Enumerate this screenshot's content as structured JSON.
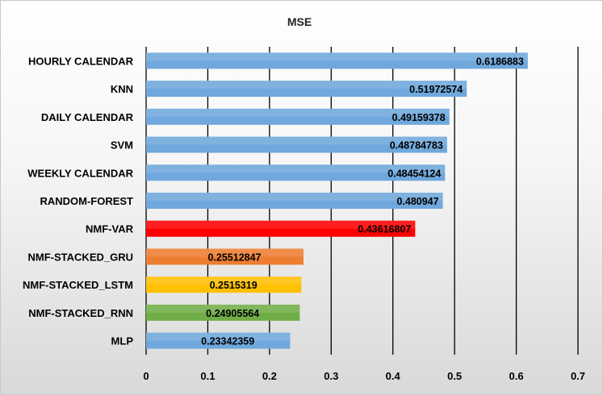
{
  "chart_data": {
    "type": "bar",
    "orientation": "horizontal",
    "title": "MSE",
    "xlim": [
      0,
      0.7
    ],
    "xticks": [
      "0",
      "0.1",
      "0.2",
      "0.3",
      "0.4",
      "0.5",
      "0.6",
      "0.7"
    ],
    "grid": true,
    "categories": [
      "HOURLY CALENDAR",
      "KNN",
      "DAILY CALENDAR",
      "SVM",
      "WEEKLY CALENDAR",
      "RANDOM-FOREST",
      "NMF-VAR",
      "NMF-STACKED_GRU",
      "NMF-STACKED_LSTM",
      "NMF-STACKED_RNN",
      "MLP"
    ],
    "values": [
      0.6186883,
      0.51972574,
      0.49159378,
      0.48784783,
      0.48454124,
      0.480947,
      0.43616807,
      0.25512847,
      0.2515319,
      0.24905564,
      0.23342359
    ],
    "value_labels": [
      "0.6186883",
      "0.51972574",
      "0.49159378",
      "0.48784783",
      "0.48454124",
      "0.480947",
      "0.43616807",
      "0.25512847",
      "0.2515319",
      "0.24905564",
      "0.23342359"
    ],
    "bar_colors": [
      "#6fa8dc",
      "#6fa8dc",
      "#6fa8dc",
      "#6fa8dc",
      "#6fa8dc",
      "#6fa8dc",
      "#ff0000",
      "#ed7d31",
      "#ffc000",
      "#70ad47",
      "#6fa8dc"
    ]
  }
}
